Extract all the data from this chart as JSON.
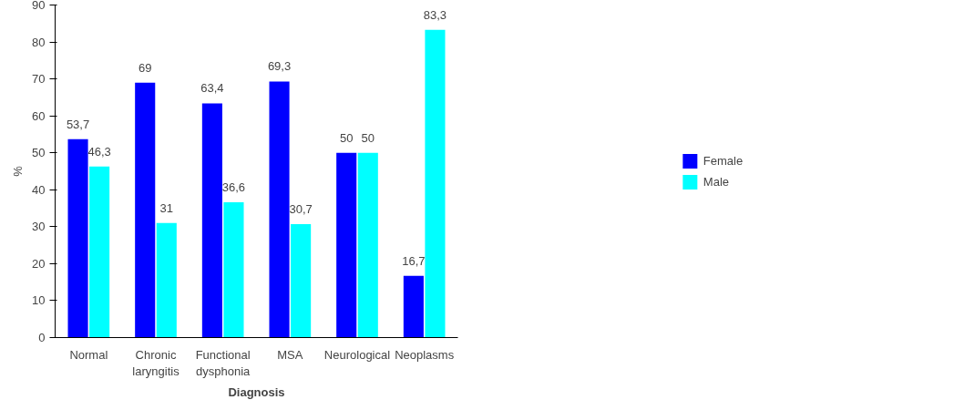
{
  "chart_data": {
    "type": "bar",
    "xlabel": "Diagnosis",
    "ylabel": "%",
    "categories": [
      "Normal",
      "Chronic laryngitis",
      "Functional dysphonia",
      "MSA",
      "Neurological",
      "Neoplasms"
    ],
    "series": [
      {
        "name": "Female",
        "color": "#0000ff",
        "values": [
          53.7,
          69,
          63.4,
          69.3,
          50,
          16.7
        ],
        "value_labels": [
          "53,7",
          "69",
          "63,4",
          "69,3",
          "50",
          "16,7"
        ]
      },
      {
        "name": "Male",
        "color": "#00ffff",
        "values": [
          46.3,
          31,
          36.6,
          30.7,
          50,
          83.3
        ],
        "value_labels": [
          "46,3",
          "31",
          "36,6",
          "30,7",
          "50",
          "83,3"
        ]
      }
    ],
    "ylim": [
      0,
      90
    ],
    "yticks": [
      0,
      10,
      20,
      30,
      40,
      50,
      60,
      70,
      80,
      90
    ],
    "grid": false,
    "legend": "right"
  }
}
